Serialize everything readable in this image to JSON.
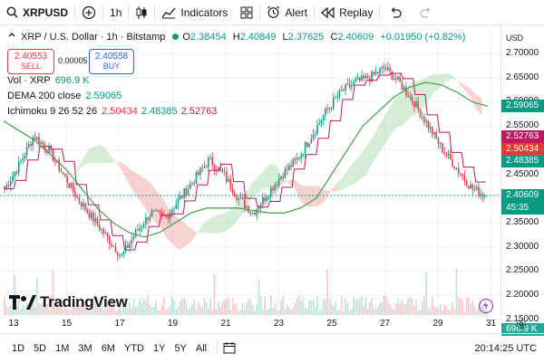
{
  "topbar": {
    "symbol": "XRPUSD",
    "interval": "1h",
    "indicators_label": "Indicators",
    "alert_label": "Alert",
    "replay_label": "Replay"
  },
  "legend": {
    "title": "XRP / U.S. Dollar · 1h · Bitstamp",
    "o_label": "O",
    "o_value": "2.38454",
    "h_label": "H",
    "h_value": "2.40849",
    "l_label": "L",
    "l_value": "2.37625",
    "c_label": "C",
    "c_value": "2.40609",
    "change": "+0.01950 (+0.82%)",
    "sell_price": "2.40553",
    "sell_label": "SELL",
    "spread": "0.00005",
    "buy_price": "2.40558",
    "buy_label": "BUY",
    "vol_label": "Vol · XRP",
    "vol_value": "696.9 K",
    "dema_label": "DEMA 200 close",
    "dema_value": "2.59065",
    "ichimoku_label": "Ichimoku 9 26 52 26",
    "ichi_v1": "2.50434",
    "ichi_v2": "2.48385",
    "ichi_v3": "2.52763"
  },
  "price_axis": {
    "currency": "USD",
    "labels": [
      "2.70000",
      "2.65000",
      "2.60000",
      "2.55000",
      "2.50000",
      "2.45000",
      "2.40000",
      "2.35000",
      "2.30000",
      "2.25000",
      "2.20000",
      "2.15000"
    ],
    "tags": [
      {
        "text": "2.59065",
        "color": "#089981"
      },
      {
        "text": "2.52763",
        "color": "#c2185b"
      },
      {
        "text": "2.50434",
        "color": "#e53935"
      },
      {
        "text": "2.48385",
        "color": "#089981"
      },
      {
        "text": "2.40609",
        "color": "#089981"
      },
      {
        "text": "45:35",
        "color": "#089981"
      },
      {
        "text": "696.9 K",
        "color": "#26a69a"
      }
    ]
  },
  "time_axis": {
    "labels": [
      "13",
      "15",
      "17",
      "19",
      "21",
      "23",
      "25",
      "27",
      "29",
      "31"
    ]
  },
  "bottombar": {
    "ranges": [
      "1D",
      "5D",
      "1M",
      "3M",
      "6M",
      "YTD",
      "1Y",
      "5Y",
      "All"
    ],
    "time": "20:14:25 UTC"
  },
  "logo": "TradingView",
  "colors": {
    "up": "#089981",
    "down": "#f23645",
    "tenkan": "#c2185b",
    "dema": "#43a047",
    "cloud_up": "#a5d6a7",
    "cloud_down": "#ef9a9a"
  },
  "chart_data": {
    "type": "candlestick",
    "title": "XRP / U.S. Dollar · 1h · Bitstamp",
    "xlabel": "",
    "ylabel": "",
    "x_ticks": [
      "13",
      "15",
      "17",
      "19",
      "21",
      "23",
      "25",
      "27",
      "29",
      "31"
    ],
    "ylim": [
      2.13,
      2.72
    ],
    "close_path": [
      2.42,
      2.47,
      2.53,
      2.5,
      2.45,
      2.4,
      2.36,
      2.32,
      2.28,
      2.33,
      2.37,
      2.36,
      2.4,
      2.44,
      2.48,
      2.45,
      2.4,
      2.37,
      2.41,
      2.45,
      2.48,
      2.53,
      2.58,
      2.62,
      2.64,
      2.65,
      2.67,
      2.64,
      2.6,
      2.55,
      2.5,
      2.46,
      2.42,
      2.405
    ],
    "series": [
      {
        "name": "DEMA 200 close",
        "values": [
          2.56,
          2.54,
          2.52,
          2.49,
          2.46,
          2.42,
          2.38,
          2.35,
          2.33,
          2.32,
          2.33,
          2.35,
          2.37,
          2.38,
          2.38,
          2.38,
          2.375,
          2.37,
          2.37,
          2.38,
          2.4,
          2.45,
          2.5,
          2.55,
          2.58,
          2.61,
          2.63,
          2.64,
          2.635,
          2.62,
          2.6,
          2.59065
        ]
      },
      {
        "name": "Ichimoku",
        "values": [
          2.52763,
          2.50434,
          2.48385
        ]
      }
    ],
    "last_price": 2.40609,
    "volume_last": "696.9 K"
  }
}
